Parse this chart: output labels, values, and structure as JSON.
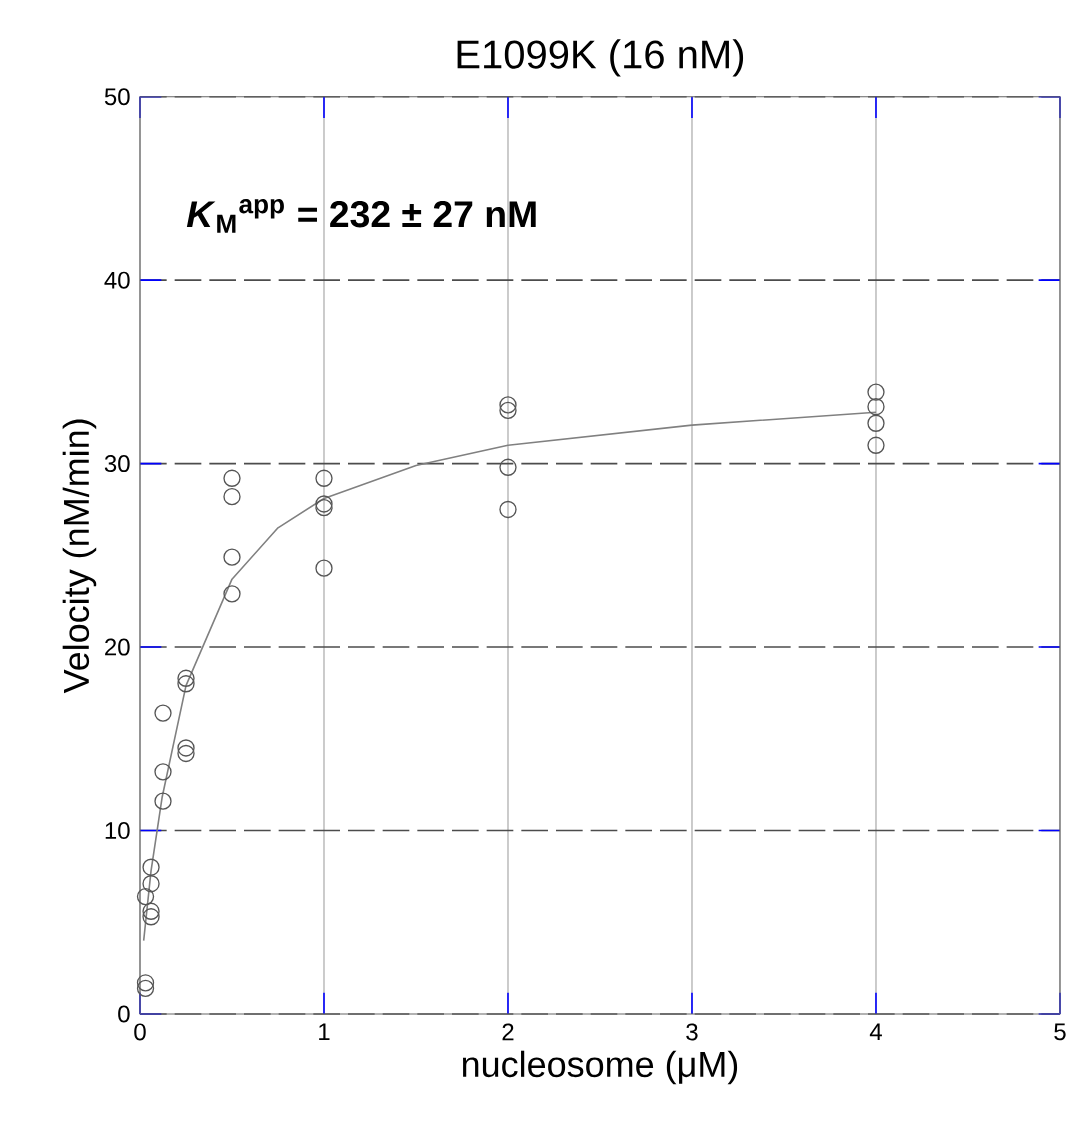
{
  "chart_data": {
    "type": "scatter",
    "title": "E1099K (16 nM)",
    "xlabel": "nucleosome (μM)",
    "ylabel": "Velocity (nM/min)",
    "annotations": [
      "*K*$_{M}$$^{app}$ = 232 ± 27 nM"
    ],
    "xlim": [
      0,
      5
    ],
    "xticks": [
      0,
      1,
      2,
      3,
      4,
      5
    ],
    "ylim": [
      0,
      50
    ],
    "yticks": [
      0,
      10,
      20,
      30,
      40,
      50
    ],
    "grid": true,
    "series": [
      {
        "marker": "circle",
        "color": "#555555",
        "x": [
          0.03,
          0.03,
          0.03,
          0.06,
          0.06,
          0.06,
          0.06,
          0.125,
          0.125,
          0.125,
          0.25,
          0.25,
          0.25,
          0.25,
          0.5,
          0.5,
          0.5,
          0.5,
          1,
          1,
          1,
          1,
          2,
          2,
          2,
          2,
          4,
          4,
          4,
          4
        ],
        "values": [
          1.4,
          1.7,
          6.4,
          8.0,
          7.1,
          5.6,
          5.3,
          16.4,
          13.2,
          11.6,
          18.3,
          18.0,
          14.5,
          14.2,
          29.2,
          28.2,
          24.9,
          22.9,
          29.2,
          27.8,
          27.6,
          24.3,
          33.2,
          32.9,
          29.8,
          27.5,
          33.9,
          33.1,
          32.2,
          31.0
        ]
      },
      {
        "type": "line",
        "marker": "none",
        "color": "#808080",
        "x": [
          0.02,
          0.06,
          0.12,
          0.25,
          0.5,
          0.75,
          1,
          1.5,
          2,
          3,
          4
        ],
        "values": [
          4.0,
          7.8,
          11.8,
          17.9,
          23.7,
          26.5,
          28.1,
          29.9,
          31.0,
          32.1,
          32.8
        ]
      }
    ]
  }
}
